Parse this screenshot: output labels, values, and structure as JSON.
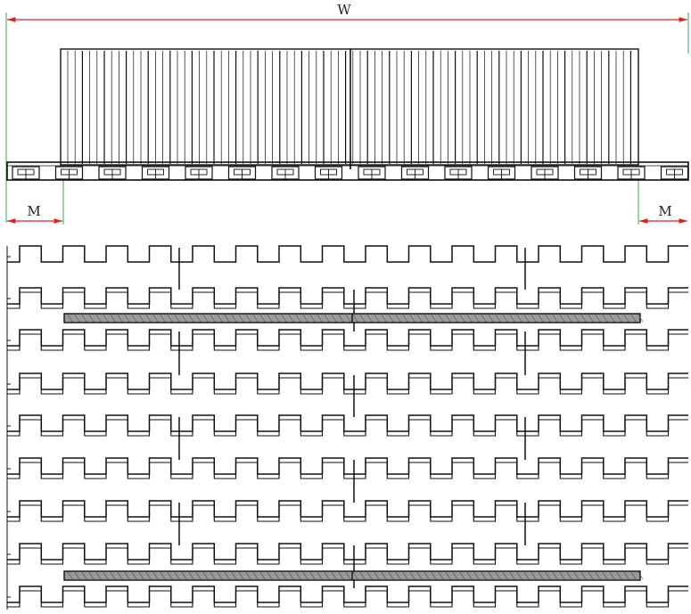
{
  "dimensions": {
    "total_width_label": "W",
    "side_margin_left_label": "M",
    "side_margin_right_label": "M"
  },
  "colors": {
    "line": "#111111",
    "dimension_red": "#e02020",
    "extension_green": "#2fa84f",
    "background": "#ffffff",
    "bar_fill": "#9a9a9a"
  },
  "icons": {
    "arrowhead": "arrowhead-icon"
  }
}
